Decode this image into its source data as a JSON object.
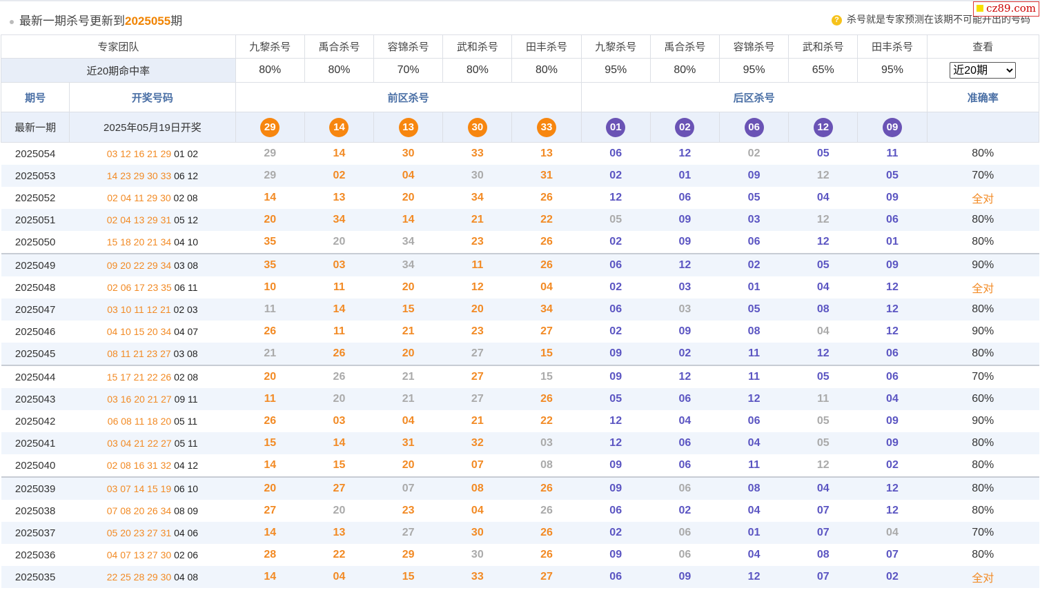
{
  "header": {
    "title_prefix": "最新一期杀号更新到",
    "title_issue": "2025055",
    "title_suffix": "期",
    "tip_icon": "?",
    "tip": "杀号就是专家预测在该期不可能开出的号码",
    "logo": "cz89.com"
  },
  "experts_header": {
    "team_label": "专家团队",
    "names": [
      "九黎杀号",
      "禹合杀号",
      "容锦杀号",
      "武和杀号",
      "田丰杀号",
      "九黎杀号",
      "禹合杀号",
      "容锦杀号",
      "武和杀号",
      "田丰杀号"
    ],
    "view_label": "查看"
  },
  "rates_row": {
    "label": "近20期命中率",
    "rates": [
      "80%",
      "80%",
      "70%",
      "80%",
      "80%",
      "95%",
      "80%",
      "95%",
      "65%",
      "95%"
    ],
    "select_value": "近20期"
  },
  "columns": {
    "issue": "期号",
    "draw": "开奖号码",
    "front": "前区杀号",
    "back": "后区杀号",
    "accuracy": "准确率"
  },
  "latest": {
    "label": "最新一期",
    "date": "2025年05月19日开奖",
    "front": [
      "29",
      "14",
      "13",
      "30",
      "33"
    ],
    "back": [
      "01",
      "02",
      "06",
      "12",
      "09"
    ]
  },
  "rows": [
    {
      "issue": "2025054",
      "red": "03 12 16 21 29",
      "blue": "01 02",
      "front": [
        "29",
        "14",
        "30",
        "33",
        "13"
      ],
      "back": [
        "06",
        "12",
        "02",
        "05",
        "11"
      ],
      "front_miss": [
        0
      ],
      "back_miss": [
        2
      ],
      "rate": "80%"
    },
    {
      "issue": "2025053",
      "red": "14 23 29 30 33",
      "blue": "06 12",
      "front": [
        "29",
        "02",
        "04",
        "30",
        "31"
      ],
      "back": [
        "02",
        "01",
        "09",
        "12",
        "05"
      ],
      "front_miss": [
        0,
        3
      ],
      "back_miss": [
        3
      ],
      "rate": "70%"
    },
    {
      "issue": "2025052",
      "red": "02 04 11 29 30",
      "blue": "02 08",
      "front": [
        "14",
        "13",
        "20",
        "34",
        "26"
      ],
      "back": [
        "12",
        "06",
        "05",
        "04",
        "09"
      ],
      "front_miss": [],
      "back_miss": [],
      "rate": "全对"
    },
    {
      "issue": "2025051",
      "red": "02 04 13 29 31",
      "blue": "05 12",
      "front": [
        "20",
        "34",
        "14",
        "21",
        "22"
      ],
      "back": [
        "05",
        "09",
        "03",
        "12",
        "06"
      ],
      "front_miss": [],
      "back_miss": [
        0,
        3
      ],
      "rate": "80%"
    },
    {
      "issue": "2025050",
      "red": "15 18 20 21 34",
      "blue": "04 10",
      "front": [
        "35",
        "20",
        "34",
        "23",
        "26"
      ],
      "back": [
        "02",
        "09",
        "06",
        "12",
        "01"
      ],
      "front_miss": [
        1,
        2
      ],
      "back_miss": [],
      "rate": "80%"
    },
    {
      "issue": "2025049",
      "red": "09 20 22 29 34",
      "blue": "03 08",
      "front": [
        "35",
        "03",
        "34",
        "11",
        "26"
      ],
      "back": [
        "06",
        "12",
        "02",
        "05",
        "09"
      ],
      "front_miss": [
        2
      ],
      "back_miss": [],
      "rate": "90%"
    },
    {
      "issue": "2025048",
      "red": "02 06 17 23 35",
      "blue": "06 11",
      "front": [
        "10",
        "11",
        "20",
        "12",
        "04"
      ],
      "back": [
        "02",
        "03",
        "01",
        "04",
        "12"
      ],
      "front_miss": [],
      "back_miss": [],
      "rate": "全对"
    },
    {
      "issue": "2025047",
      "red": "03 10 11 12 21",
      "blue": "02 03",
      "front": [
        "11",
        "14",
        "15",
        "20",
        "34"
      ],
      "back": [
        "06",
        "03",
        "05",
        "08",
        "12"
      ],
      "front_miss": [
        0
      ],
      "back_miss": [
        1
      ],
      "rate": "80%"
    },
    {
      "issue": "2025046",
      "red": "04 10 15 20 34",
      "blue": "04 07",
      "front": [
        "26",
        "11",
        "21",
        "23",
        "27"
      ],
      "back": [
        "02",
        "09",
        "08",
        "04",
        "12"
      ],
      "front_miss": [],
      "back_miss": [
        3
      ],
      "rate": "90%"
    },
    {
      "issue": "2025045",
      "red": "08 11 21 23 27",
      "blue": "03 08",
      "front": [
        "21",
        "26",
        "20",
        "27",
        "15"
      ],
      "back": [
        "09",
        "02",
        "11",
        "12",
        "06"
      ],
      "front_miss": [
        0,
        3
      ],
      "back_miss": [],
      "rate": "80%"
    },
    {
      "issue": "2025044",
      "red": "15 17 21 22 26",
      "blue": "02 08",
      "front": [
        "20",
        "26",
        "21",
        "27",
        "15"
      ],
      "back": [
        "09",
        "12",
        "11",
        "05",
        "06"
      ],
      "front_miss": [
        1,
        2,
        4
      ],
      "back_miss": [],
      "rate": "70%"
    },
    {
      "issue": "2025043",
      "red": "03 16 20 21 27",
      "blue": "09 11",
      "front": [
        "11",
        "20",
        "21",
        "27",
        "26"
      ],
      "back": [
        "05",
        "06",
        "12",
        "11",
        "04"
      ],
      "front_miss": [
        1,
        2,
        3
      ],
      "back_miss": [
        3
      ],
      "rate": "60%"
    },
    {
      "issue": "2025042",
      "red": "06 08 11 18 20",
      "blue": "05 11",
      "front": [
        "26",
        "03",
        "04",
        "21",
        "22"
      ],
      "back": [
        "12",
        "04",
        "06",
        "05",
        "09"
      ],
      "front_miss": [],
      "back_miss": [
        3
      ],
      "rate": "90%"
    },
    {
      "issue": "2025041",
      "red": "03 04 21 22 27",
      "blue": "05 11",
      "front": [
        "15",
        "14",
        "31",
        "32",
        "03"
      ],
      "back": [
        "12",
        "06",
        "04",
        "05",
        "09"
      ],
      "front_miss": [
        4
      ],
      "back_miss": [
        3
      ],
      "rate": "80%"
    },
    {
      "issue": "2025040",
      "red": "02 08 16 31 32",
      "blue": "04 12",
      "front": [
        "14",
        "15",
        "20",
        "07",
        "08"
      ],
      "back": [
        "09",
        "06",
        "11",
        "12",
        "02"
      ],
      "front_miss": [
        4
      ],
      "back_miss": [
        3
      ],
      "rate": "80%"
    },
    {
      "issue": "2025039",
      "red": "03 07 14 15 19",
      "blue": "06 10",
      "front": [
        "20",
        "27",
        "07",
        "08",
        "26"
      ],
      "back": [
        "09",
        "06",
        "08",
        "04",
        "12"
      ],
      "front_miss": [
        2
      ],
      "back_miss": [
        1
      ],
      "rate": "80%"
    },
    {
      "issue": "2025038",
      "red": "07 08 20 26 34",
      "blue": "08 09",
      "front": [
        "27",
        "20",
        "23",
        "04",
        "26"
      ],
      "back": [
        "06",
        "02",
        "04",
        "07",
        "12"
      ],
      "front_miss": [
        1,
        4
      ],
      "back_miss": [],
      "rate": "80%"
    },
    {
      "issue": "2025037",
      "red": "05 20 23 27 31",
      "blue": "04 06",
      "front": [
        "14",
        "13",
        "27",
        "30",
        "26"
      ],
      "back": [
        "02",
        "06",
        "01",
        "07",
        "04"
      ],
      "front_miss": [
        2
      ],
      "back_miss": [
        1,
        4
      ],
      "rate": "70%"
    },
    {
      "issue": "2025036",
      "red": "04 07 13 27 30",
      "blue": "02 06",
      "front": [
        "28",
        "22",
        "29",
        "30",
        "26"
      ],
      "back": [
        "09",
        "06",
        "04",
        "08",
        "07"
      ],
      "front_miss": [
        3
      ],
      "back_miss": [
        1
      ],
      "rate": "80%"
    },
    {
      "issue": "2025035",
      "red": "22 25 28 29 30",
      "blue": "04 08",
      "front": [
        "14",
        "04",
        "15",
        "33",
        "27"
      ],
      "back": [
        "06",
        "09",
        "12",
        "07",
        "02"
      ],
      "front_miss": [],
      "back_miss": [],
      "rate": "全对"
    }
  ]
}
